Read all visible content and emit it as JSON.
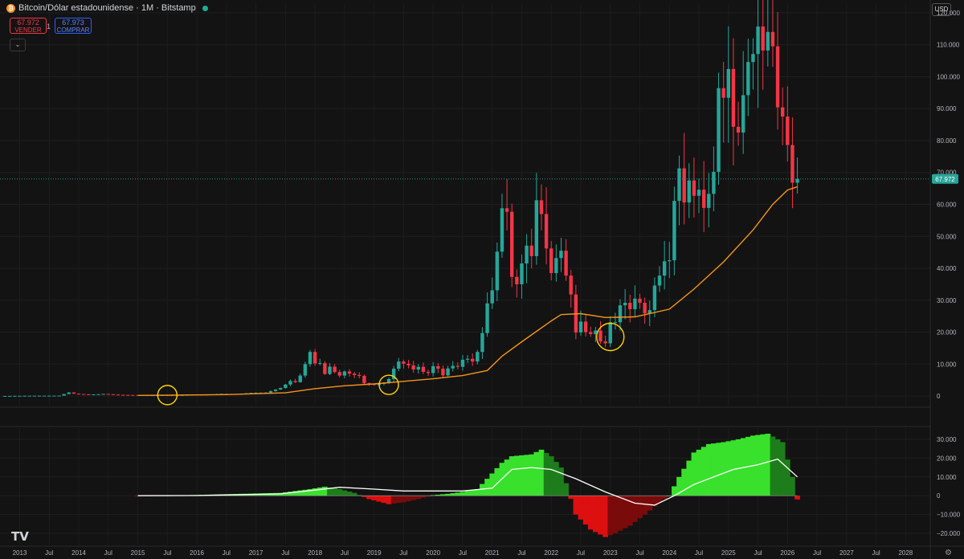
{
  "header": {
    "symbol_title": "Bitcoin/Dólar estadounidense · 1M · Bitstamp",
    "sell_price": "67.972",
    "sell_label": "VENDER",
    "buy_price": "67.973",
    "buy_label": "COMPRAR",
    "spread": "1",
    "currency": "USD",
    "coin_glyph": "₿",
    "collapse_glyph": "⌄",
    "logo_text": "TV",
    "settings_glyph": "⚙"
  },
  "colors": {
    "up": "#26a69a",
    "down": "#f23645",
    "ma": "#f7931a",
    "hist_light_green": "#39e12c",
    "hist_dark_green": "#1d7d1a",
    "hist_red": "#dd0f0f",
    "hist_dark_red": "#7a0b0b",
    "signal": "#ffffff",
    "highlight_circle": "#ffd400"
  },
  "chart_data": [
    {
      "type": "candlestick",
      "title": "Bitcoin/Dólar estadounidense · 1M · Bitstamp",
      "last_price": 67972,
      "last_price_label": "67.972",
      "y_range": [
        -3000,
        123000
      ],
      "y_ticks": [
        0,
        10000,
        20000,
        30000,
        40000,
        50000,
        60000,
        70000,
        80000,
        90000,
        100000,
        110000,
        120000
      ],
      "y_tick_labels": [
        "0",
        "10.000",
        "20.000",
        "30.000",
        "40.000",
        "50.000",
        "60.000",
        "70.000",
        "80.000",
        "90.000",
        "100.000",
        "110.000",
        "120.000"
      ],
      "x_range": [
        "2012-09",
        "2028-06"
      ],
      "x_ticks": [
        "2013-01",
        "2013-07",
        "2014-01",
        "2014-07",
        "2015-01",
        "2015-07",
        "2016-01",
        "2016-07",
        "2017-01",
        "2017-07",
        "2018-01",
        "2018-07",
        "2019-01",
        "2019-07",
        "2020-01",
        "2020-07",
        "2021-01",
        "2021-07",
        "2022-01",
        "2022-07",
        "2023-01",
        "2023-07",
        "2024-01",
        "2024-07",
        "2025-01",
        "2025-07",
        "2026-01",
        "2026-07",
        "2027-01",
        "2027-07",
        "2028-01"
      ],
      "x_tick_labels": [
        "2013",
        "Jul",
        "2014",
        "Jul",
        "2015",
        "Jul",
        "2016",
        "Jul",
        "2017",
        "Jul",
        "2018",
        "Jul",
        "2019",
        "Jul",
        "2020",
        "Jul",
        "2021",
        "Jul",
        "2022",
        "Jul",
        "2023",
        "Jul",
        "2024",
        "Jul",
        "2025",
        "Jul",
        "2026",
        "Jul",
        "2027",
        "Jul",
        "2028"
      ],
      "grid": true,
      "closes_anchor": [
        [
          "2012-09",
          12
        ],
        [
          "2013-03",
          93
        ],
        [
          "2013-06",
          97
        ],
        [
          "2013-09",
          130
        ],
        [
          "2013-11",
          1100
        ],
        [
          "2013-12",
          730
        ],
        [
          "2014-03",
          450
        ],
        [
          "2014-06",
          640
        ],
        [
          "2014-09",
          385
        ],
        [
          "2014-12",
          320
        ],
        [
          "2015-03",
          244
        ],
        [
          "2015-06",
          265
        ],
        [
          "2015-09",
          236
        ],
        [
          "2015-12",
          430
        ],
        [
          "2016-03",
          416
        ],
        [
          "2016-06",
          672
        ],
        [
          "2016-09",
          608
        ],
        [
          "2016-12",
          963
        ],
        [
          "2017-03",
          1080
        ],
        [
          "2017-06",
          2500
        ],
        [
          "2017-08",
          4700
        ],
        [
          "2017-09",
          4340
        ],
        [
          "2017-10",
          6400
        ],
        [
          "2017-11",
          10000
        ],
        [
          "2017-12",
          13800
        ],
        [
          "2018-01",
          10200
        ],
        [
          "2018-02",
          10300
        ],
        [
          "2018-03",
          6900
        ],
        [
          "2018-04",
          9200
        ],
        [
          "2018-05",
          7500
        ],
        [
          "2018-06",
          6400
        ],
        [
          "2018-07",
          7700
        ],
        [
          "2018-08",
          7000
        ],
        [
          "2018-09",
          6600
        ],
        [
          "2018-10",
          6300
        ],
        [
          "2018-11",
          4000
        ],
        [
          "2018-12",
          3700
        ],
        [
          "2019-01",
          3450
        ],
        [
          "2019-02",
          3800
        ],
        [
          "2019-03",
          4100
        ],
        [
          "2019-04",
          5300
        ],
        [
          "2019-05",
          8550
        ],
        [
          "2019-06",
          10800
        ],
        [
          "2019-07",
          10100
        ],
        [
          "2019-08",
          9600
        ],
        [
          "2019-09",
          8300
        ],
        [
          "2019-10",
          9150
        ],
        [
          "2019-11",
          7550
        ],
        [
          "2019-12",
          7200
        ],
        [
          "2020-01",
          9350
        ],
        [
          "2020-02",
          8550
        ],
        [
          "2020-03",
          6450
        ],
        [
          "2020-04",
          8650
        ],
        [
          "2020-05",
          9450
        ],
        [
          "2020-06",
          9150
        ],
        [
          "2020-07",
          11350
        ],
        [
          "2020-08",
          11650
        ],
        [
          "2020-09",
          10800
        ],
        [
          "2020-10",
          13800
        ],
        [
          "2020-11",
          19700
        ],
        [
          "2020-12",
          29000
        ],
        [
          "2021-01",
          33100
        ],
        [
          "2021-02",
          45200
        ],
        [
          "2021-03",
          58800
        ],
        [
          "2021-04",
          57700
        ],
        [
          "2021-05",
          37300
        ],
        [
          "2021-06",
          35000
        ],
        [
          "2021-07",
          41500
        ],
        [
          "2021-08",
          47100
        ],
        [
          "2021-09",
          43800
        ],
        [
          "2021-10",
          61300
        ],
        [
          "2021-11",
          57000
        ],
        [
          "2021-12",
          46200
        ],
        [
          "2022-01",
          38500
        ],
        [
          "2022-02",
          43200
        ],
        [
          "2022-03",
          45500
        ],
        [
          "2022-04",
          37700
        ],
        [
          "2022-05",
          31800
        ],
        [
          "2022-06",
          19900
        ],
        [
          "2022-07",
          23300
        ],
        [
          "2022-08",
          20000
        ],
        [
          "2022-09",
          19400
        ],
        [
          "2022-10",
          20500
        ],
        [
          "2022-11",
          17100
        ],
        [
          "2022-12",
          16500
        ],
        [
          "2023-01",
          23100
        ],
        [
          "2023-02",
          23100
        ],
        [
          "2023-03",
          28400
        ],
        [
          "2023-04",
          29200
        ],
        [
          "2023-05",
          27200
        ],
        [
          "2023-06",
          30500
        ],
        [
          "2023-07",
          29200
        ],
        [
          "2023-08",
          25900
        ],
        [
          "2023-09",
          26900
        ],
        [
          "2023-10",
          34600
        ],
        [
          "2023-11",
          37700
        ],
        [
          "2023-12",
          42200
        ],
        [
          "2024-01",
          42500
        ],
        [
          "2024-02",
          61100
        ],
        [
          "2024-03",
          71300
        ],
        [
          "2024-04",
          60600
        ],
        [
          "2024-05",
          67500
        ],
        [
          "2024-06",
          62700
        ],
        [
          "2024-07",
          64600
        ],
        [
          "2024-08",
          58900
        ],
        [
          "2024-09",
          63300
        ],
        [
          "2024-10",
          70200
        ],
        [
          "2024-11",
          96400
        ],
        [
          "2024-12",
          93400
        ],
        [
          "2025-01",
          102400
        ],
        [
          "2025-02",
          84300
        ],
        [
          "2025-03",
          82500
        ],
        [
          "2025-04",
          94200
        ],
        [
          "2025-05",
          104600
        ],
        [
          "2025-06",
          107100
        ],
        [
          "2025-07",
          115700
        ],
        [
          "2025-08",
          108200
        ],
        [
          "2025-09",
          114000
        ],
        [
          "2025-10",
          109500
        ],
        [
          "2025-11",
          90400
        ],
        [
          "2025-12",
          87500
        ],
        [
          "2026-01",
          78600
        ],
        [
          "2026-02",
          66800
        ],
        [
          "2026-03",
          67972
        ]
      ],
      "moving_average": {
        "color": "#f7931a",
        "values": [
          [
            "2015-01",
            200
          ],
          [
            "2016-07",
            450
          ],
          [
            "2017-07",
            1000
          ],
          [
            "2018-01",
            2300
          ],
          [
            "2018-07",
            3200
          ],
          [
            "2019-01",
            3800
          ],
          [
            "2019-07",
            4600
          ],
          [
            "2020-01",
            5400
          ],
          [
            "2020-07",
            6400
          ],
          [
            "2020-12",
            8000
          ],
          [
            "2021-03",
            12500
          ],
          [
            "2021-07",
            17000
          ],
          [
            "2022-01",
            23500
          ],
          [
            "2022-03",
            25500
          ],
          [
            "2022-07",
            25800
          ],
          [
            "2022-12",
            24600
          ],
          [
            "2023-06",
            24800
          ],
          [
            "2024-01",
            27200
          ],
          [
            "2024-06",
            33500
          ],
          [
            "2024-12",
            42000
          ],
          [
            "2025-06",
            52000
          ],
          [
            "2025-10",
            60000
          ],
          [
            "2026-01",
            64500
          ],
          [
            "2026-03",
            65500
          ]
        ]
      },
      "highlight_circles": [
        {
          "x": "2015-07",
          "y": 300
        },
        {
          "x": "2019-04",
          "y": 3500
        },
        {
          "x": "2023-01",
          "y": 18500
        }
      ]
    },
    {
      "type": "area",
      "name": "",
      "y_range": [
        -26000,
        36000
      ],
      "y_ticks": [
        -20000,
        -10000,
        0,
        10000,
        20000,
        30000
      ],
      "y_tick_labels": [
        "−20.000",
        "−10.000",
        "0",
        "10.000",
        "20.000",
        "30.000"
      ],
      "grid": true,
      "histogram": [
        [
          "2015-01",
          -300
        ],
        [
          "2016-01",
          400
        ],
        [
          "2016-07",
          800
        ],
        [
          "2017-06",
          1500
        ],
        [
          "2017-12",
          3500
        ],
        [
          "2018-03",
          4800
        ],
        [
          "2018-06",
          3500
        ],
        [
          "2018-09",
          1500
        ],
        [
          "2018-12",
          -1800
        ],
        [
          "2019-04",
          -4500
        ],
        [
          "2019-07",
          -3500
        ],
        [
          "2019-10",
          -1800
        ],
        [
          "2020-01",
          300
        ],
        [
          "2020-04",
          1000
        ],
        [
          "2020-07",
          2000
        ],
        [
          "2020-10",
          3500
        ],
        [
          "2020-12",
          9000
        ],
        [
          "2021-03",
          17500
        ],
        [
          "2021-05",
          21000
        ],
        [
          "2021-07",
          21500
        ],
        [
          "2021-09",
          22000
        ],
        [
          "2021-11",
          24500
        ],
        [
          "2022-01",
          21000
        ],
        [
          "2022-03",
          15000
        ],
        [
          "2022-06",
          -10000
        ],
        [
          "2022-09",
          -18000
        ],
        [
          "2022-12",
          -22000
        ],
        [
          "2023-02",
          -20000
        ],
        [
          "2023-05",
          -16000
        ],
        [
          "2023-08",
          -10000
        ],
        [
          "2023-11",
          -3500
        ],
        [
          "2024-01",
          0
        ],
        [
          "2024-03",
          10000
        ],
        [
          "2024-06",
          23000
        ],
        [
          "2024-09",
          27500
        ],
        [
          "2024-12",
          28500
        ],
        [
          "2025-03",
          30000
        ],
        [
          "2025-06",
          32000
        ],
        [
          "2025-09",
          33000
        ],
        [
          "2025-12",
          28500
        ],
        [
          "2026-02",
          10000
        ],
        [
          "2026-03",
          -2000
        ]
      ],
      "signal": [
        [
          "2015-01",
          0
        ],
        [
          "2016-01",
          100
        ],
        [
          "2017-06",
          1000
        ],
        [
          "2018-01",
          3000
        ],
        [
          "2018-06",
          4500
        ],
        [
          "2019-01",
          3500
        ],
        [
          "2019-07",
          2500
        ],
        [
          "2020-01",
          2500
        ],
        [
          "2020-07",
          2500
        ],
        [
          "2021-01",
          4000
        ],
        [
          "2021-05",
          14000
        ],
        [
          "2021-09",
          15000
        ],
        [
          "2022-01",
          14000
        ],
        [
          "2022-06",
          9000
        ],
        [
          "2022-12",
          2000
        ],
        [
          "2023-06",
          -4000
        ],
        [
          "2023-10",
          -5000
        ],
        [
          "2024-02",
          0
        ],
        [
          "2024-06",
          6000
        ],
        [
          "2024-10",
          10000
        ],
        [
          "2025-02",
          14000
        ],
        [
          "2025-07",
          16500
        ],
        [
          "2025-11",
          19500
        ],
        [
          "2026-03",
          10000
        ]
      ]
    }
  ]
}
